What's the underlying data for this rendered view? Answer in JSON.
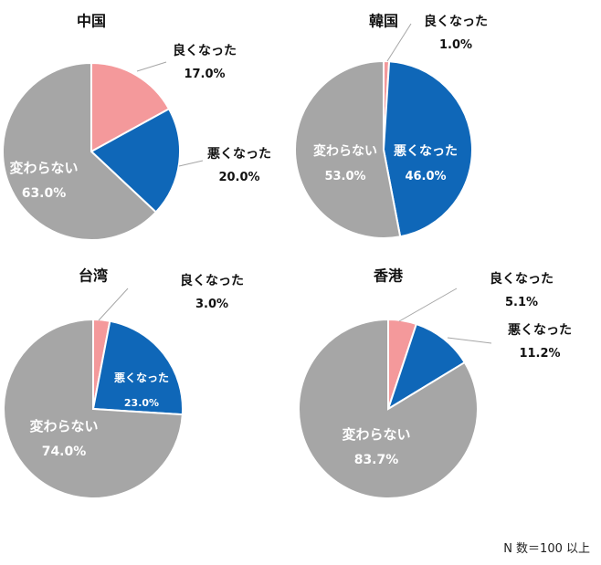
{
  "chart_data": [
    {
      "type": "pie",
      "title": "中国",
      "slices": [
        {
          "label": "良くなった",
          "value": 17.0,
          "value_label": "17.0%",
          "color": "#f4999b"
        },
        {
          "label": "悪くなった",
          "value": 20.0,
          "value_label": "20.0%",
          "color": "#0f67b8"
        },
        {
          "label": "変わらない",
          "value": 63.0,
          "value_label": "63.0%",
          "color": "#a6a6a6"
        }
      ]
    },
    {
      "type": "pie",
      "title": "韓国",
      "slices": [
        {
          "label": "良くなった",
          "value": 1.0,
          "value_label": "1.0%",
          "color": "#f4999b"
        },
        {
          "label": "悪くなった",
          "value": 46.0,
          "value_label": "46.0%",
          "color": "#0f67b8"
        },
        {
          "label": "変わらない",
          "value": 53.0,
          "value_label": "53.0%",
          "color": "#a6a6a6"
        }
      ]
    },
    {
      "type": "pie",
      "title": "台湾",
      "slices": [
        {
          "label": "良くなった",
          "value": 3.0,
          "value_label": "3.0%",
          "color": "#f4999b"
        },
        {
          "label": "悪くなった",
          "value": 23.0,
          "value_label": "23.0%",
          "color": "#0f67b8"
        },
        {
          "label": "変わらない",
          "value": 74.0,
          "value_label": "74.0%",
          "color": "#a6a6a6"
        }
      ]
    },
    {
      "type": "pie",
      "title": "香港",
      "slices": [
        {
          "label": "良くなった",
          "value": 5.1,
          "value_label": "5.1%",
          "color": "#f4999b"
        },
        {
          "label": "悪くなった",
          "value": 11.2,
          "value_label": "11.2%",
          "color": "#0f67b8"
        },
        {
          "label": "変わらない",
          "value": 83.7,
          "value_label": "83.7%",
          "color": "#a6a6a6"
        }
      ]
    }
  ],
  "footnote": "N 数＝100 以上"
}
